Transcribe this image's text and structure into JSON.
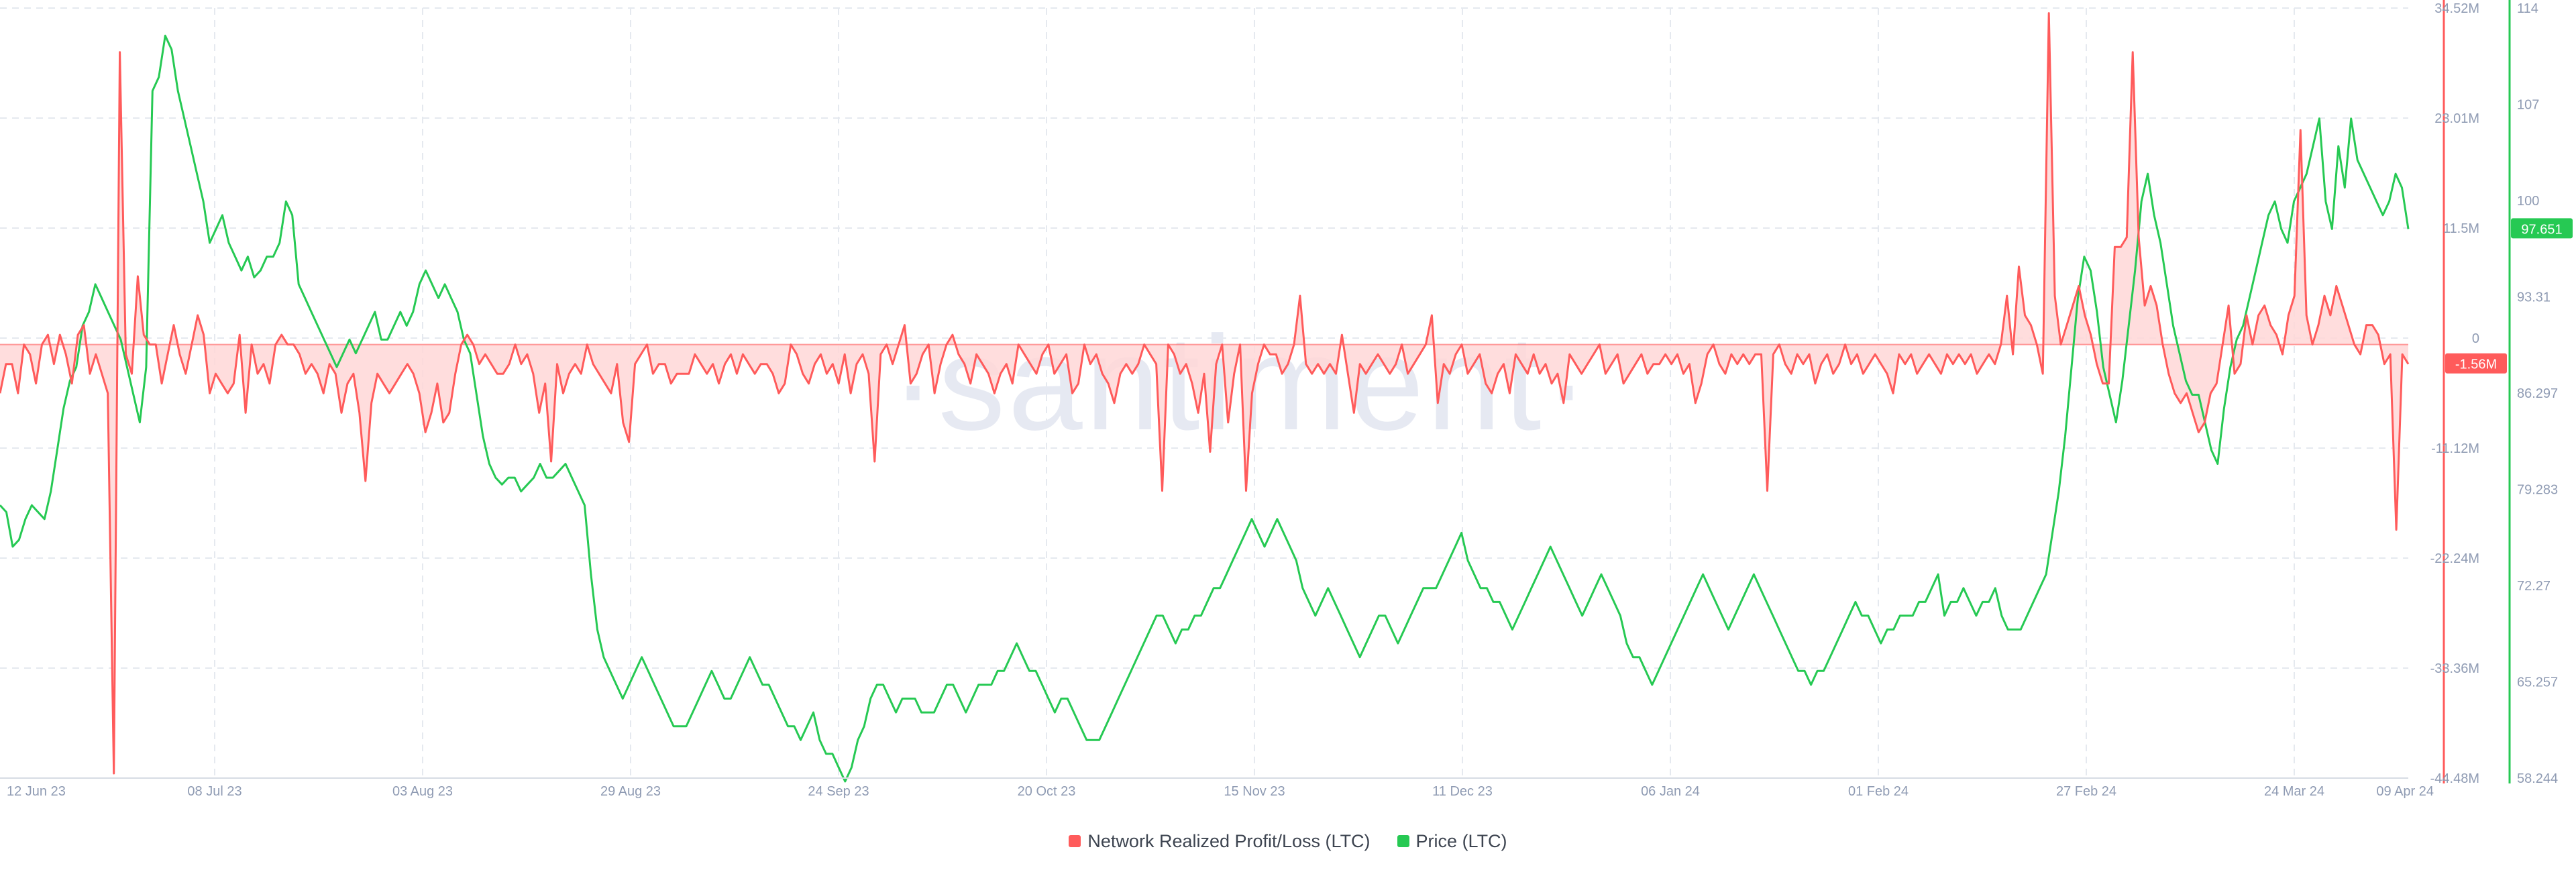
{
  "watermark": "·santiment·",
  "colors": {
    "nrpl": "#ff5b5b",
    "nrpl_fill": "#ffd7d7",
    "price": "#26c953",
    "grid": "#e5e9ef",
    "tick": "#8f9bb3",
    "watermark": "#e6e9f2"
  },
  "legend": [
    {
      "label": "Network Realized Profit/Loss (LTC)",
      "color": "#ff5b5b"
    },
    {
      "label": "Price (LTC)",
      "color": "#26c953"
    }
  ],
  "chart_data": {
    "type": "line",
    "x_ticks": [
      "12 Jun 23",
      "08 Jul 23",
      "03 Aug 23",
      "29 Aug 23",
      "24 Sep 23",
      "20 Oct 23",
      "15 Nov 23",
      "11 Dec 23",
      "06 Jan 24",
      "01 Feb 24",
      "27 Feb 24",
      "24 Mar 24",
      "09 Apr 24"
    ],
    "x_range": [
      "2023-06-12",
      "2024-04-09"
    ],
    "y_left": {
      "ticks": [
        "34.52M",
        "23.01M",
        "11.5M",
        "0",
        "-11.12M",
        "-22.24M",
        "-33.36M",
        "-44.48M"
      ],
      "min": -44.48,
      "max": 34.52,
      "unit": "M"
    },
    "y_right": {
      "ticks": [
        "114",
        "107",
        "100",
        "93.31",
        "86.297",
        "79.283",
        "72.27",
        "65.257",
        "58.244"
      ],
      "min": 58.244,
      "max": 114
    },
    "last_values": {
      "nrpl": "-1.56M",
      "price": "97.651"
    },
    "series": [
      {
        "name": "Network Realized Profit/Loss (LTC)",
        "axis": "left",
        "unit": "M",
        "values": [
          -5,
          -2,
          -2,
          -5,
          0,
          -1,
          -4,
          0,
          1,
          -2,
          1,
          -1,
          -4,
          1,
          2,
          -3,
          -1,
          -3,
          -5,
          -44,
          30,
          -1,
          -3,
          7,
          1,
          0,
          0,
          -4,
          -1,
          2,
          -1,
          -3,
          0,
          3,
          1,
          -5,
          -3,
          -4,
          -5,
          -4,
          1,
          -7,
          0,
          -3,
          -2,
          -4,
          0,
          1,
          0,
          0,
          -1,
          -3,
          -2,
          -3,
          -5,
          -2,
          -3,
          -7,
          -4,
          -3,
          -7,
          -14,
          -6,
          -3,
          -4,
          -5,
          -4,
          -3,
          -2,
          -3,
          -5,
          -9,
          -7,
          -4,
          -8,
          -7,
          -3,
          0,
          1,
          0,
          -2,
          -1,
          -2,
          -3,
          -3,
          -2,
          0,
          -2,
          -1,
          -3,
          -7,
          -4,
          -12,
          -2,
          -5,
          -3,
          -2,
          -3,
          0,
          -2,
          -3,
          -4,
          -5,
          -2,
          -8,
          -10,
          -2,
          -1,
          0,
          -3,
          -2,
          -2,
          -4,
          -3,
          -3,
          -3,
          -1,
          -2,
          -3,
          -2,
          -4,
          -2,
          -1,
          -3,
          -1,
          -2,
          -3,
          -2,
          -2,
          -3,
          -5,
          -4,
          0,
          -1,
          -3,
          -4,
          -2,
          -1,
          -3,
          -2,
          -4,
          -1,
          -5,
          -2,
          -1,
          -3,
          -12,
          -1,
          0,
          -2,
          0,
          2,
          -4,
          -3,
          -1,
          0,
          -5,
          -2,
          0,
          1,
          -1,
          -2,
          -4,
          -1,
          -2,
          -3,
          -5,
          -3,
          -2,
          -4,
          0,
          -1,
          -2,
          -3,
          -1,
          0,
          -3,
          -2,
          -1,
          -5,
          -4,
          0,
          -2,
          -1,
          -3,
          -4,
          -6,
          -3,
          -2,
          -3,
          -2,
          0,
          -1,
          -2,
          -15,
          0,
          -1,
          -3,
          -2,
          -4,
          -7,
          -3,
          -11,
          -2,
          0,
          -8,
          -3,
          0,
          -15,
          -5,
          -2,
          0,
          -1,
          -1,
          -3,
          -2,
          0,
          5,
          -2,
          -3,
          -2,
          -3,
          -2,
          -3,
          1,
          -3,
          -7,
          -2,
          -3,
          -2,
          -1,
          -2,
          -3,
          -2,
          0,
          -3,
          -2,
          -1,
          0,
          3,
          -6,
          -2,
          -3,
          -1,
          0,
          -3,
          -2,
          -1,
          -4,
          -5,
          -3,
          -2,
          -5,
          -1,
          -2,
          -3,
          -1,
          -3,
          -2,
          -4,
          -3,
          -6,
          -1,
          -2,
          -3,
          -2,
          -1,
          0,
          -3,
          -2,
          -1,
          -4,
          -3,
          -2,
          -1,
          -3,
          -2,
          -2,
          -1,
          -2,
          -1,
          -3,
          -2,
          -6,
          -4,
          -1,
          0,
          -2,
          -3,
          -1,
          -2,
          -1,
          -2,
          -1,
          -1,
          -15,
          -1,
          0,
          -2,
          -3,
          -1,
          -2,
          -1,
          -4,
          -2,
          -1,
          -3,
          -2,
          0,
          -2,
          -1,
          -3,
          -2,
          -1,
          -2,
          -3,
          -5,
          -1,
          -2,
          -1,
          -3,
          -2,
          -1,
          -2,
          -3,
          -1,
          -2,
          -1,
          -2,
          -1,
          -3,
          -2,
          -1,
          -2,
          0,
          5,
          -1,
          8,
          3,
          2,
          0,
          -3,
          34,
          5,
          0,
          2,
          4,
          6,
          3,
          1,
          -2,
          -4,
          -4,
          10,
          10,
          11,
          30,
          11,
          4,
          6,
          4,
          0,
          -3,
          -5,
          -6,
          -5,
          -7,
          -9,
          -8,
          -5,
          -4,
          0,
          4,
          -3,
          -2,
          3,
          0,
          3,
          4,
          2,
          1,
          -1,
          3,
          5,
          22,
          3,
          0,
          2,
          5,
          3,
          6,
          4,
          2,
          0,
          -1,
          2,
          2,
          1,
          -2,
          -1,
          -19,
          -1,
          -2
        ]
      },
      {
        "name": "Price (LTC)",
        "axis": "right",
        "values": [
          78,
          77.5,
          75,
          75.5,
          77,
          78,
          77.5,
          77,
          79,
          82,
          85,
          87,
          88,
          91,
          92,
          94,
          93,
          92,
          91,
          90,
          88,
          86,
          84,
          88,
          108,
          109,
          112,
          111,
          108,
          106,
          104,
          102,
          100,
          97,
          98,
          99,
          97,
          96,
          95,
          96,
          94.5,
          95,
          96,
          96,
          97,
          100,
          99,
          94,
          93,
          92,
          91,
          90,
          89,
          88,
          89,
          90,
          89,
          90,
          91,
          92,
          90,
          90,
          91,
          92,
          91,
          92,
          94,
          95,
          94,
          93,
          94,
          93,
          92,
          90,
          89,
          86,
          83,
          81,
          80,
          79.5,
          80,
          80,
          79,
          79.5,
          80,
          81,
          80,
          80,
          80.5,
          81,
          80,
          79,
          78,
          73,
          69,
          67,
          66,
          65,
          64,
          65,
          66,
          67,
          66,
          65,
          64,
          63,
          62,
          62,
          62,
          63,
          64,
          65,
          66,
          65,
          64,
          64,
          65,
          66,
          67,
          66,
          65,
          65,
          64,
          63,
          62,
          62,
          61,
          62,
          63,
          61,
          60,
          60,
          59,
          58,
          59,
          61,
          62,
          64,
          65,
          65,
          64,
          63,
          64,
          64,
          64,
          63,
          63,
          63,
          64,
          65,
          65,
          64,
          63,
          64,
          65,
          65,
          65,
          66,
          66,
          67,
          68,
          67,
          66,
          66,
          65,
          64,
          63,
          64,
          64,
          63,
          62,
          61,
          61,
          61,
          62,
          63,
          64,
          65,
          66,
          67,
          68,
          69,
          70,
          70,
          69,
          68,
          69,
          69,
          70,
          70,
          71,
          72,
          72,
          73,
          74,
          75,
          76,
          77,
          76,
          75,
          76,
          77,
          76,
          75,
          74,
          72,
          71,
          70,
          71,
          72,
          71,
          70,
          69,
          68,
          67,
          68,
          69,
          70,
          70,
          69,
          68,
          69,
          70,
          71,
          72,
          72,
          72,
          73,
          74,
          75,
          76,
          74,
          73,
          72,
          72,
          71,
          71,
          70,
          69,
          70,
          71,
          72,
          73,
          74,
          75,
          74,
          73,
          72,
          71,
          70,
          71,
          72,
          73,
          72,
          71,
          70,
          68,
          67,
          67,
          66,
          65,
          66,
          67,
          68,
          69,
          70,
          71,
          72,
          73,
          72,
          71,
          70,
          69,
          70,
          71,
          72,
          73,
          72,
          71,
          70,
          69,
          68,
          67,
          66,
          66,
          65,
          66,
          66,
          67,
          68,
          69,
          70,
          71,
          70,
          70,
          69,
          68,
          69,
          69,
          70,
          70,
          70,
          71,
          71,
          72,
          73,
          70,
          71,
          71,
          72,
          71,
          70,
          71,
          71,
          72,
          70,
          69,
          69,
          69,
          70,
          71,
          72,
          73,
          76,
          79,
          83,
          88,
          93,
          96,
          95,
          92,
          88,
          86,
          84,
          87,
          91,
          95,
          100,
          102,
          99,
          97,
          94,
          91,
          89,
          87,
          86,
          86,
          84,
          82,
          81,
          85,
          88,
          90,
          91,
          93,
          95,
          97,
          99,
          100,
          98,
          97,
          100,
          101,
          102,
          104,
          106,
          100,
          98,
          104,
          101,
          106,
          103,
          102,
          101,
          100,
          99,
          100,
          102,
          101,
          98
        ]
      }
    ]
  }
}
